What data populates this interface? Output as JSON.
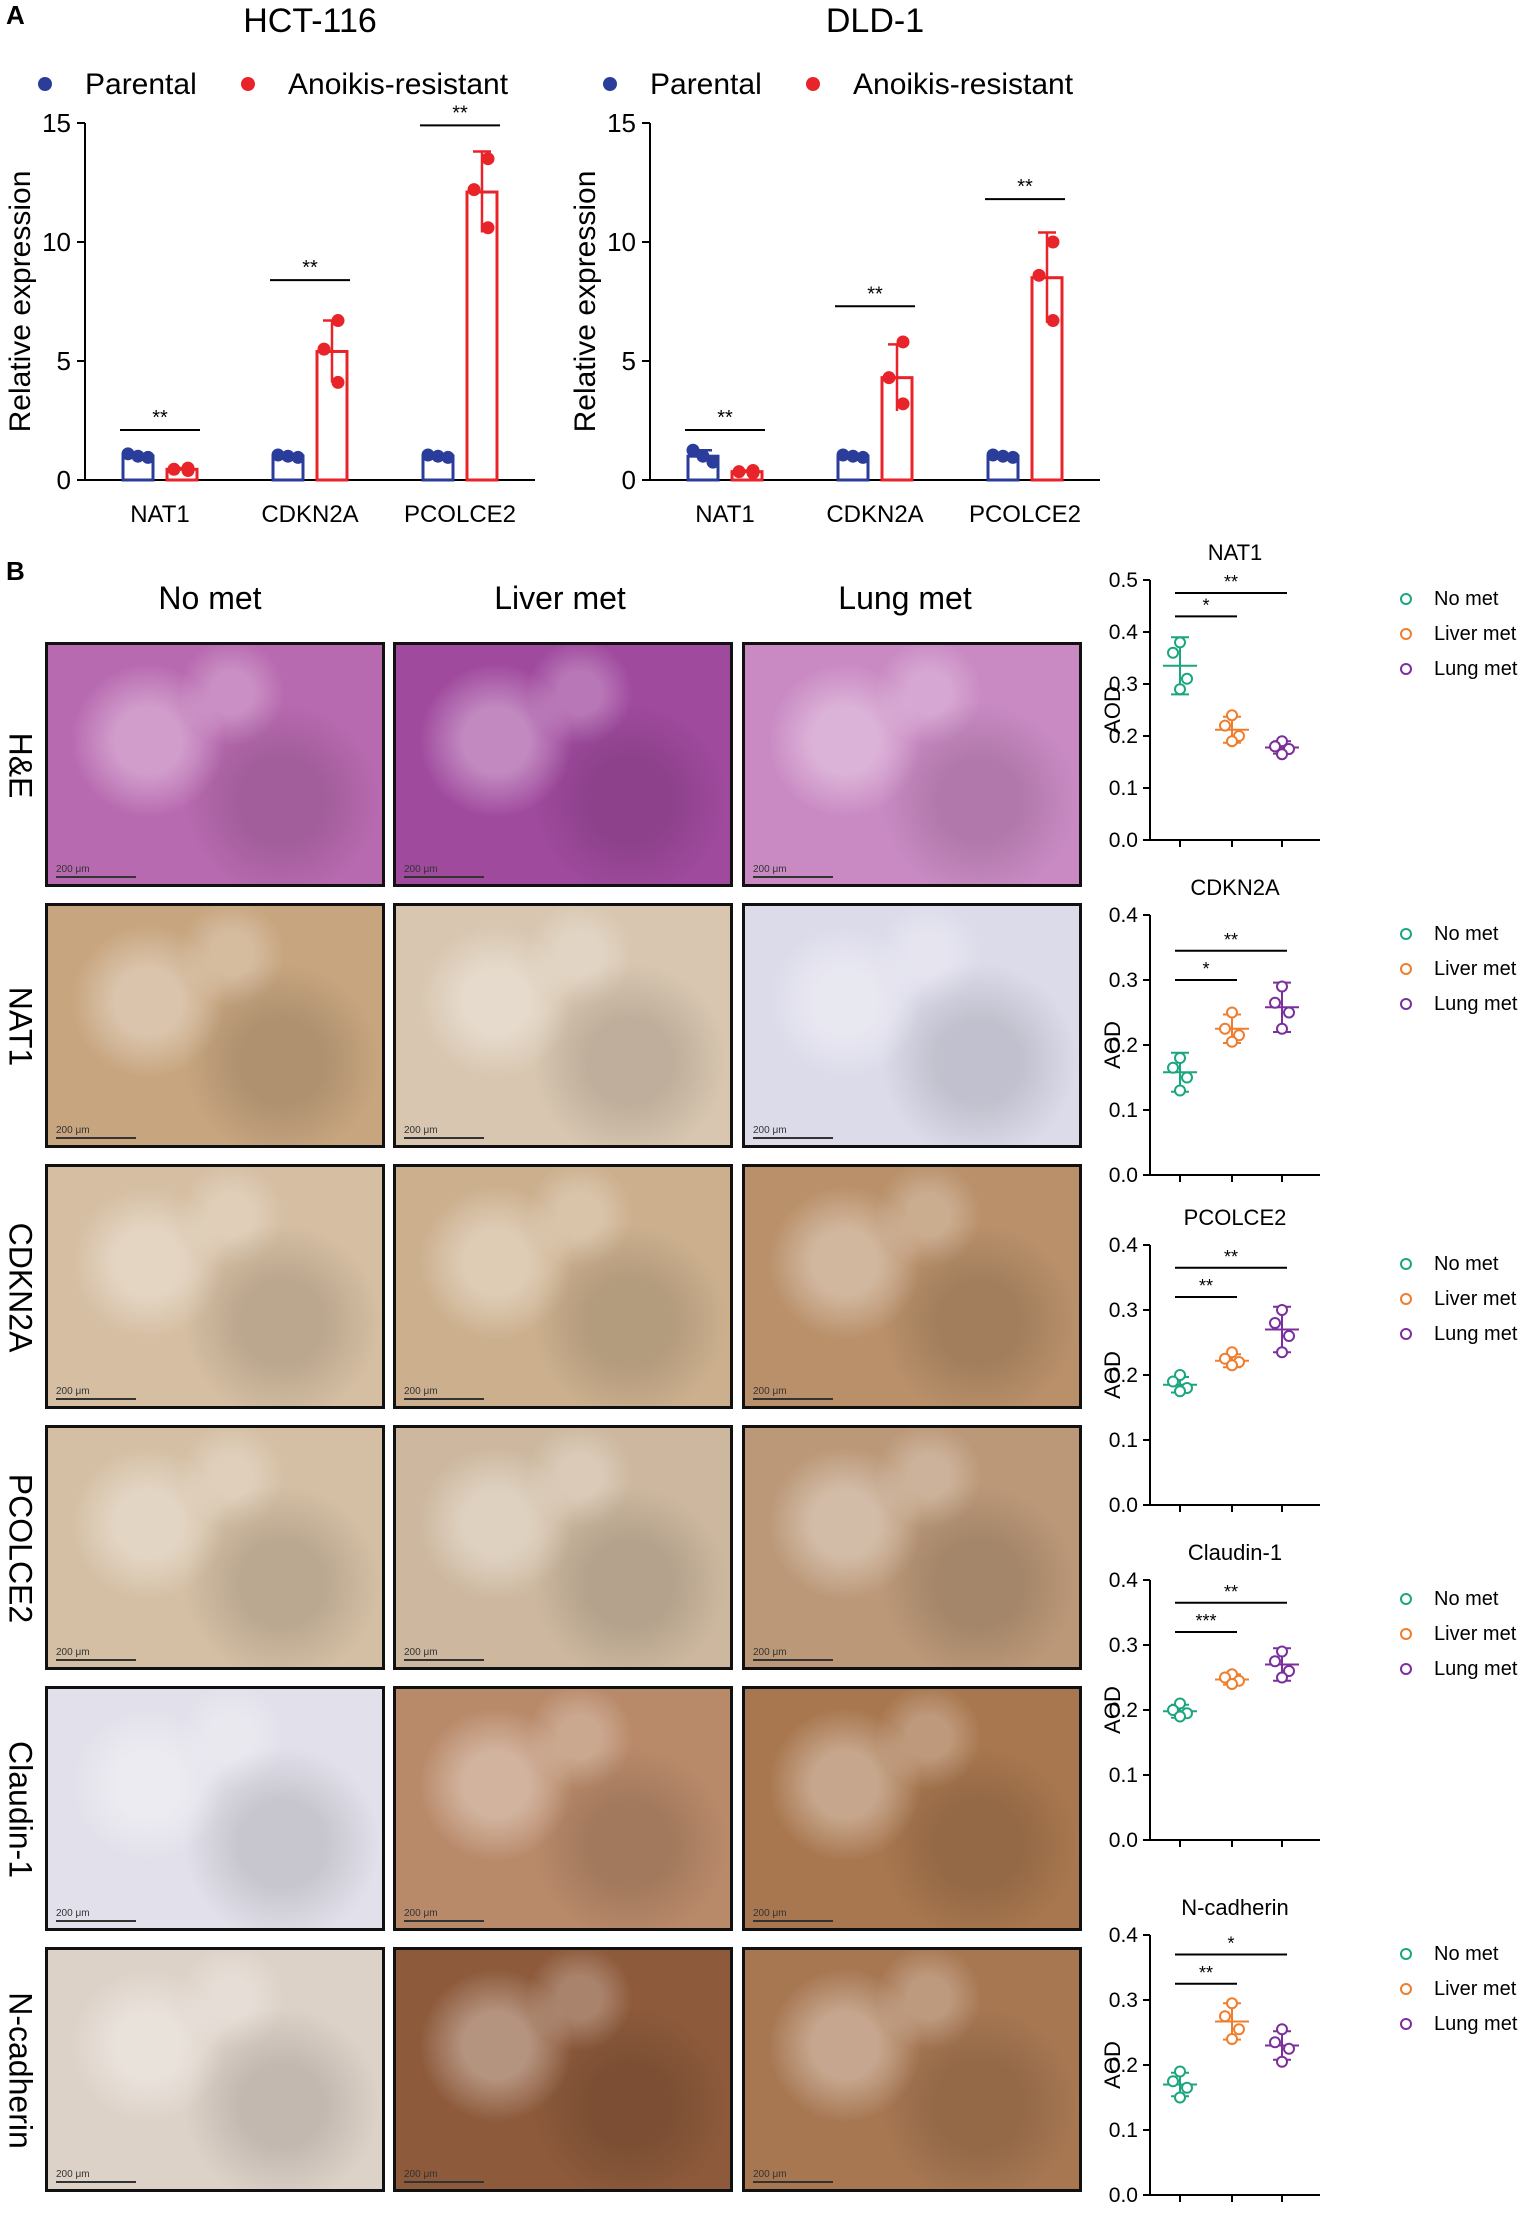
{
  "panel_a_label": "A",
  "panel_b_label": "B",
  "colors": {
    "parental": "#2b3d9b",
    "resistant": "#e8242a",
    "no_met": "#1aa67f",
    "liver_met": "#f07d2b",
    "lung_met": "#7b2f9d"
  },
  "ihc": {
    "columns": [
      "No met",
      "Liver met",
      "Lung met"
    ],
    "rows": [
      "H&E",
      "NAT1",
      "CDKN2A",
      "PCOLCE2",
      "Claudin-1",
      "N-cadherin"
    ],
    "scale_label": "200 μm",
    "tile_colors": [
      [
        "#b86ab0",
        "#a04a9e",
        "#c98ac3"
      ],
      [
        "#c7a57f",
        "#d8c6b0",
        "#dcdbea"
      ],
      [
        "#d5bea2",
        "#ccb08e",
        "#b9906a"
      ],
      [
        "#d4bfa4",
        "#cdb89f",
        "#bb9878"
      ],
      [
        "#e2e0ea",
        "#b98a6a",
        "#a8774f"
      ],
      [
        "#ddd2c8",
        "#8d5a3b",
        "#a77752"
      ]
    ]
  },
  "chart_data": [
    {
      "type": "bar",
      "title": "HCT-116",
      "ylabel": "Relative expression",
      "ylim": [
        0,
        15
      ],
      "yticks": [
        0,
        5,
        10,
        15
      ],
      "legend_position": "top",
      "categories": [
        "NAT1",
        "CDKN2A",
        "PCOLCE2"
      ],
      "series": [
        {
          "name": "Parental",
          "values": [
            1.0,
            1.0,
            1.0
          ],
          "errors": [
            0.1,
            0.05,
            0.05
          ],
          "points": [
            [
              1.1,
              1.0,
              0.95
            ],
            [
              1.05,
              1.0,
              0.95
            ],
            [
              1.05,
              1.0,
              0.95
            ]
          ]
        },
        {
          "name": "Anoikis-resistant",
          "values": [
            0.45,
            5.4,
            12.1
          ],
          "errors": [
            0.05,
            1.3,
            1.7
          ],
          "points": [
            [
              0.5,
              0.45,
              0.4
            ],
            [
              6.7,
              5.5,
              4.1
            ],
            [
              13.5,
              12.2,
              10.6
            ]
          ]
        }
      ],
      "significance": [
        "**",
        "**",
        "**"
      ],
      "sig_y": [
        2.1,
        8.4,
        14.9
      ]
    },
    {
      "type": "bar",
      "title": "DLD-1",
      "ylabel": "Relative expression",
      "ylim": [
        0,
        15
      ],
      "yticks": [
        0,
        5,
        10,
        15
      ],
      "legend_position": "top",
      "categories": [
        "NAT1",
        "CDKN2A",
        "PCOLCE2"
      ],
      "series": [
        {
          "name": "Parental",
          "values": [
            1.0,
            1.0,
            1.0
          ],
          "errors": [
            0.25,
            0.1,
            0.05
          ],
          "points": [
            [
              1.25,
              1.0,
              0.75
            ],
            [
              1.05,
              1.0,
              0.95
            ],
            [
              1.05,
              1.0,
              0.95
            ]
          ]
        },
        {
          "name": "Anoikis-resistant",
          "values": [
            0.35,
            4.3,
            8.5
          ],
          "errors": [
            0.05,
            1.4,
            1.9
          ],
          "points": [
            [
              0.4,
              0.35,
              0.3
            ],
            [
              5.8,
              4.3,
              3.2
            ],
            [
              10.0,
              8.6,
              6.7
            ]
          ]
        }
      ],
      "significance": [
        "**",
        "**",
        "**"
      ],
      "sig_y": [
        2.1,
        7.3,
        11.8
      ]
    },
    {
      "type": "scatter",
      "title": "NAT1",
      "ylabel": "AOD",
      "ylim": [
        0,
        0.5
      ],
      "yticks": [
        "0.0",
        "0.1",
        "0.2",
        "0.3",
        "0.4",
        "0.5"
      ],
      "groups": [
        "No met",
        "Liver met",
        "Lung met"
      ],
      "means": [
        0.335,
        0.212,
        0.178
      ],
      "sds": [
        0.055,
        0.025,
        0.012
      ],
      "points": [
        [
          0.38,
          0.36,
          0.31,
          0.29
        ],
        [
          0.24,
          0.22,
          0.2,
          0.19
        ],
        [
          0.19,
          0.18,
          0.175,
          0.165
        ]
      ],
      "comparisons": [
        {
          "label": "*",
          "y": 0.43
        },
        {
          "label": "**",
          "y": 0.475
        }
      ]
    },
    {
      "type": "scatter",
      "title": "CDKN2A",
      "ylabel": "AOD",
      "ylim": [
        0,
        0.4
      ],
      "yticks": [
        "0.0",
        "0.1",
        "0.2",
        "0.3",
        "0.4"
      ],
      "groups": [
        "No met",
        "Liver met",
        "Lung met"
      ],
      "means": [
        0.158,
        0.225,
        0.258
      ],
      "sds": [
        0.03,
        0.022,
        0.038
      ],
      "points": [
        [
          0.18,
          0.165,
          0.15,
          0.13
        ],
        [
          0.25,
          0.225,
          0.215,
          0.205
        ],
        [
          0.29,
          0.265,
          0.25,
          0.225
        ]
      ],
      "comparisons": [
        {
          "label": "*",
          "y": 0.3
        },
        {
          "label": "**",
          "y": 0.345
        }
      ]
    },
    {
      "type": "scatter",
      "title": "PCOLCE2",
      "ylabel": "AOD",
      "ylim": [
        0,
        0.4
      ],
      "yticks": [
        "0.0",
        "0.1",
        "0.2",
        "0.3",
        "0.4"
      ],
      "groups": [
        "No met",
        "Liver met",
        "Lung met"
      ],
      "means": [
        0.185,
        0.222,
        0.27
      ],
      "sds": [
        0.012,
        0.01,
        0.035
      ],
      "points": [
        [
          0.2,
          0.19,
          0.18,
          0.175
        ],
        [
          0.235,
          0.225,
          0.22,
          0.215
        ],
        [
          0.3,
          0.28,
          0.26,
          0.235
        ]
      ],
      "comparisons": [
        {
          "label": "**",
          "y": 0.32
        },
        {
          "label": "**",
          "y": 0.365
        }
      ]
    },
    {
      "type": "scatter",
      "title": "Claudin-1",
      "ylabel": "AOD",
      "ylim": [
        0,
        0.4
      ],
      "yticks": [
        "0.0",
        "0.1",
        "0.2",
        "0.3",
        "0.4"
      ],
      "groups": [
        "No met",
        "Liver met",
        "Lung met"
      ],
      "means": [
        0.198,
        0.247,
        0.27
      ],
      "sds": [
        0.01,
        0.008,
        0.025
      ],
      "points": [
        [
          0.21,
          0.2,
          0.195,
          0.19
        ],
        [
          0.255,
          0.25,
          0.245,
          0.24
        ],
        [
          0.29,
          0.275,
          0.26,
          0.25
        ]
      ],
      "comparisons": [
        {
          "label": "***",
          "y": 0.32
        },
        {
          "label": "**",
          "y": 0.365
        }
      ]
    },
    {
      "type": "scatter",
      "title": "N-cadherin",
      "ylabel": "AOD",
      "ylim": [
        0,
        0.4
      ],
      "yticks": [
        "0.0",
        "0.1",
        "0.2",
        "0.3",
        "0.4"
      ],
      "groups": [
        "No met",
        "Liver met",
        "Lung met"
      ],
      "means": [
        0.17,
        0.267,
        0.23
      ],
      "sds": [
        0.018,
        0.028,
        0.022
      ],
      "points": [
        [
          0.19,
          0.175,
          0.165,
          0.15
        ],
        [
          0.295,
          0.275,
          0.255,
          0.24
        ],
        [
          0.255,
          0.235,
          0.225,
          0.205
        ]
      ],
      "comparisons": [
        {
          "label": "**",
          "y": 0.325
        },
        {
          "label": "*",
          "y": 0.37
        }
      ]
    }
  ]
}
